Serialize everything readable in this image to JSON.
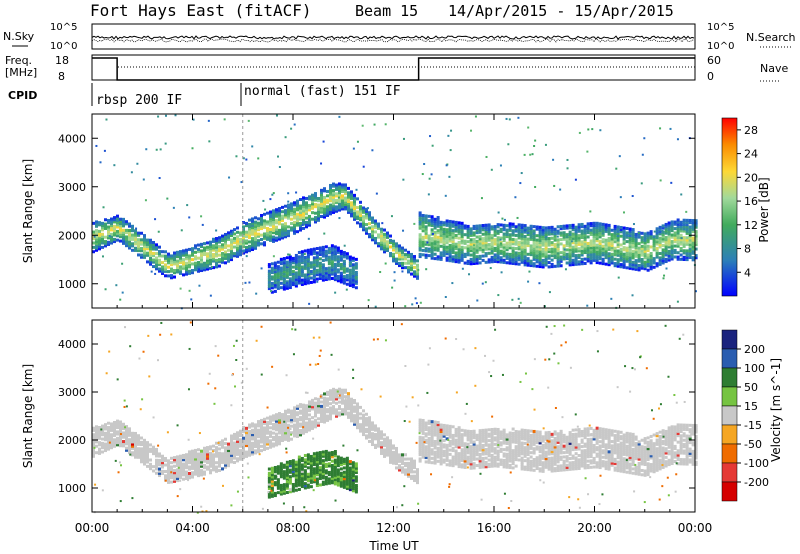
{
  "header": {
    "station": "Fort Hays East (fitACF)",
    "beam": "Beam 15",
    "dates": "14/Apr/2015 - 15/Apr/2015"
  },
  "strips": {
    "nsky": {
      "label": "N.Sky",
      "ticks": [
        "10^5",
        "10^0"
      ],
      "right_ticks": [
        "10^5",
        "10^0"
      ],
      "right_label": "N.Search"
    },
    "freq": {
      "label_line1": "Freq.",
      "label_line2": "[MHz]",
      "ticks": [
        "18",
        "8"
      ],
      "right_ticks": [
        "60",
        "0"
      ],
      "right_label": "Nave"
    },
    "cpid": {
      "label": "CPID",
      "segments": [
        {
          "name": "rbsp 200 IF",
          "start_hour": 0,
          "end_hour": 6
        },
        {
          "name": "normal (fast) 151 IF",
          "start_hour": 6,
          "end_hour": 24
        }
      ]
    },
    "freq_steps": [
      {
        "hour": 0,
        "mhz": 18
      },
      {
        "hour": 1,
        "mhz": 8
      },
      {
        "hour": 13,
        "mhz": 18
      },
      {
        "hour": 24,
        "mhz": 18
      }
    ]
  },
  "chart_data": [
    {
      "type": "heatmap",
      "name": "power",
      "ylabel": "Slant Range [km]",
      "yticks": [
        "1000",
        "2000",
        "3000",
        "4000"
      ],
      "ylim": [
        500,
        4500
      ],
      "xlim": [
        0,
        24
      ],
      "colorbar": {
        "label": "Power [dB]",
        "ticks": [
          "4",
          "8",
          "12",
          "16",
          "20",
          "24",
          "28"
        ],
        "range": [
          0,
          30
        ]
      },
      "bands": [
        {
          "t": [
            0.0,
            1.0,
            3.0,
            5.0,
            6.0,
            8.0,
            9.5,
            10.0,
            11.0,
            12.0,
            12.9
          ],
          "center": [
            1950,
            2150,
            1350,
            1650,
            1950,
            2350,
            2750,
            2800,
            2200,
            1650,
            1300
          ],
          "width": [
            300,
            250,
            250,
            300,
            320,
            320,
            300,
            250,
            250,
            220,
            200
          ],
          "power": 20
        },
        {
          "t": [
            13.0,
            14.0,
            15.0,
            16.0,
            18.0,
            20.0,
            22.0,
            23.0,
            24.0
          ],
          "center": [
            2000,
            1900,
            1800,
            1850,
            1750,
            1850,
            1650,
            1900,
            1900
          ],
          "width": [
            450,
            420,
            400,
            400,
            420,
            420,
            400,
            400,
            420
          ],
          "power": 18
        },
        {
          "t": [
            7.0,
            8.5,
            9.5,
            10.5
          ],
          "center": [
            1100,
            1350,
            1450,
            1200
          ],
          "width": [
            300,
            350,
            350,
            300
          ],
          "power": 10
        }
      ]
    },
    {
      "type": "heatmap",
      "name": "velocity",
      "ylabel": "Slant Range [km]",
      "yticks": [
        "1000",
        "2000",
        "3000",
        "4000"
      ],
      "ylim": [
        500,
        4500
      ],
      "xlim": [
        0,
        24
      ],
      "colorbar": {
        "label": "Velocity [m s^-1]",
        "ticks": [
          "200",
          "100",
          "50",
          "15",
          "-15",
          "-50",
          "-100",
          "-200"
        ],
        "range": [
          -250,
          250
        ]
      },
      "bands": [
        {
          "t": [
            0.0,
            1.0,
            3.0,
            5.0,
            6.0,
            8.0,
            9.5,
            10.0,
            11.0,
            12.0,
            12.9
          ],
          "center": [
            1950,
            2150,
            1350,
            1650,
            1950,
            2350,
            2750,
            2800,
            2200,
            1650,
            1300
          ],
          "width": [
            300,
            250,
            250,
            300,
            320,
            320,
            300,
            250,
            250,
            220,
            200
          ],
          "velocity": 0
        },
        {
          "t": [
            13.0,
            14.0,
            15.0,
            16.0,
            18.0,
            20.0,
            22.0,
            23.0,
            24.0
          ],
          "center": [
            2000,
            1900,
            1800,
            1850,
            1750,
            1850,
            1650,
            1900,
            1900
          ],
          "width": [
            450,
            420,
            400,
            400,
            420,
            420,
            400,
            400,
            420
          ],
          "velocity": 0
        },
        {
          "t": [
            7.0,
            8.5,
            9.5,
            10.5
          ],
          "center": [
            1100,
            1350,
            1450,
            1200
          ],
          "width": [
            300,
            350,
            350,
            300
          ],
          "velocity": 40
        }
      ]
    }
  ],
  "xaxis": {
    "label": "Time UT",
    "ticks": [
      "00:00",
      "04:00",
      "08:00",
      "12:00",
      "16:00",
      "20:00",
      "00:00"
    ]
  }
}
